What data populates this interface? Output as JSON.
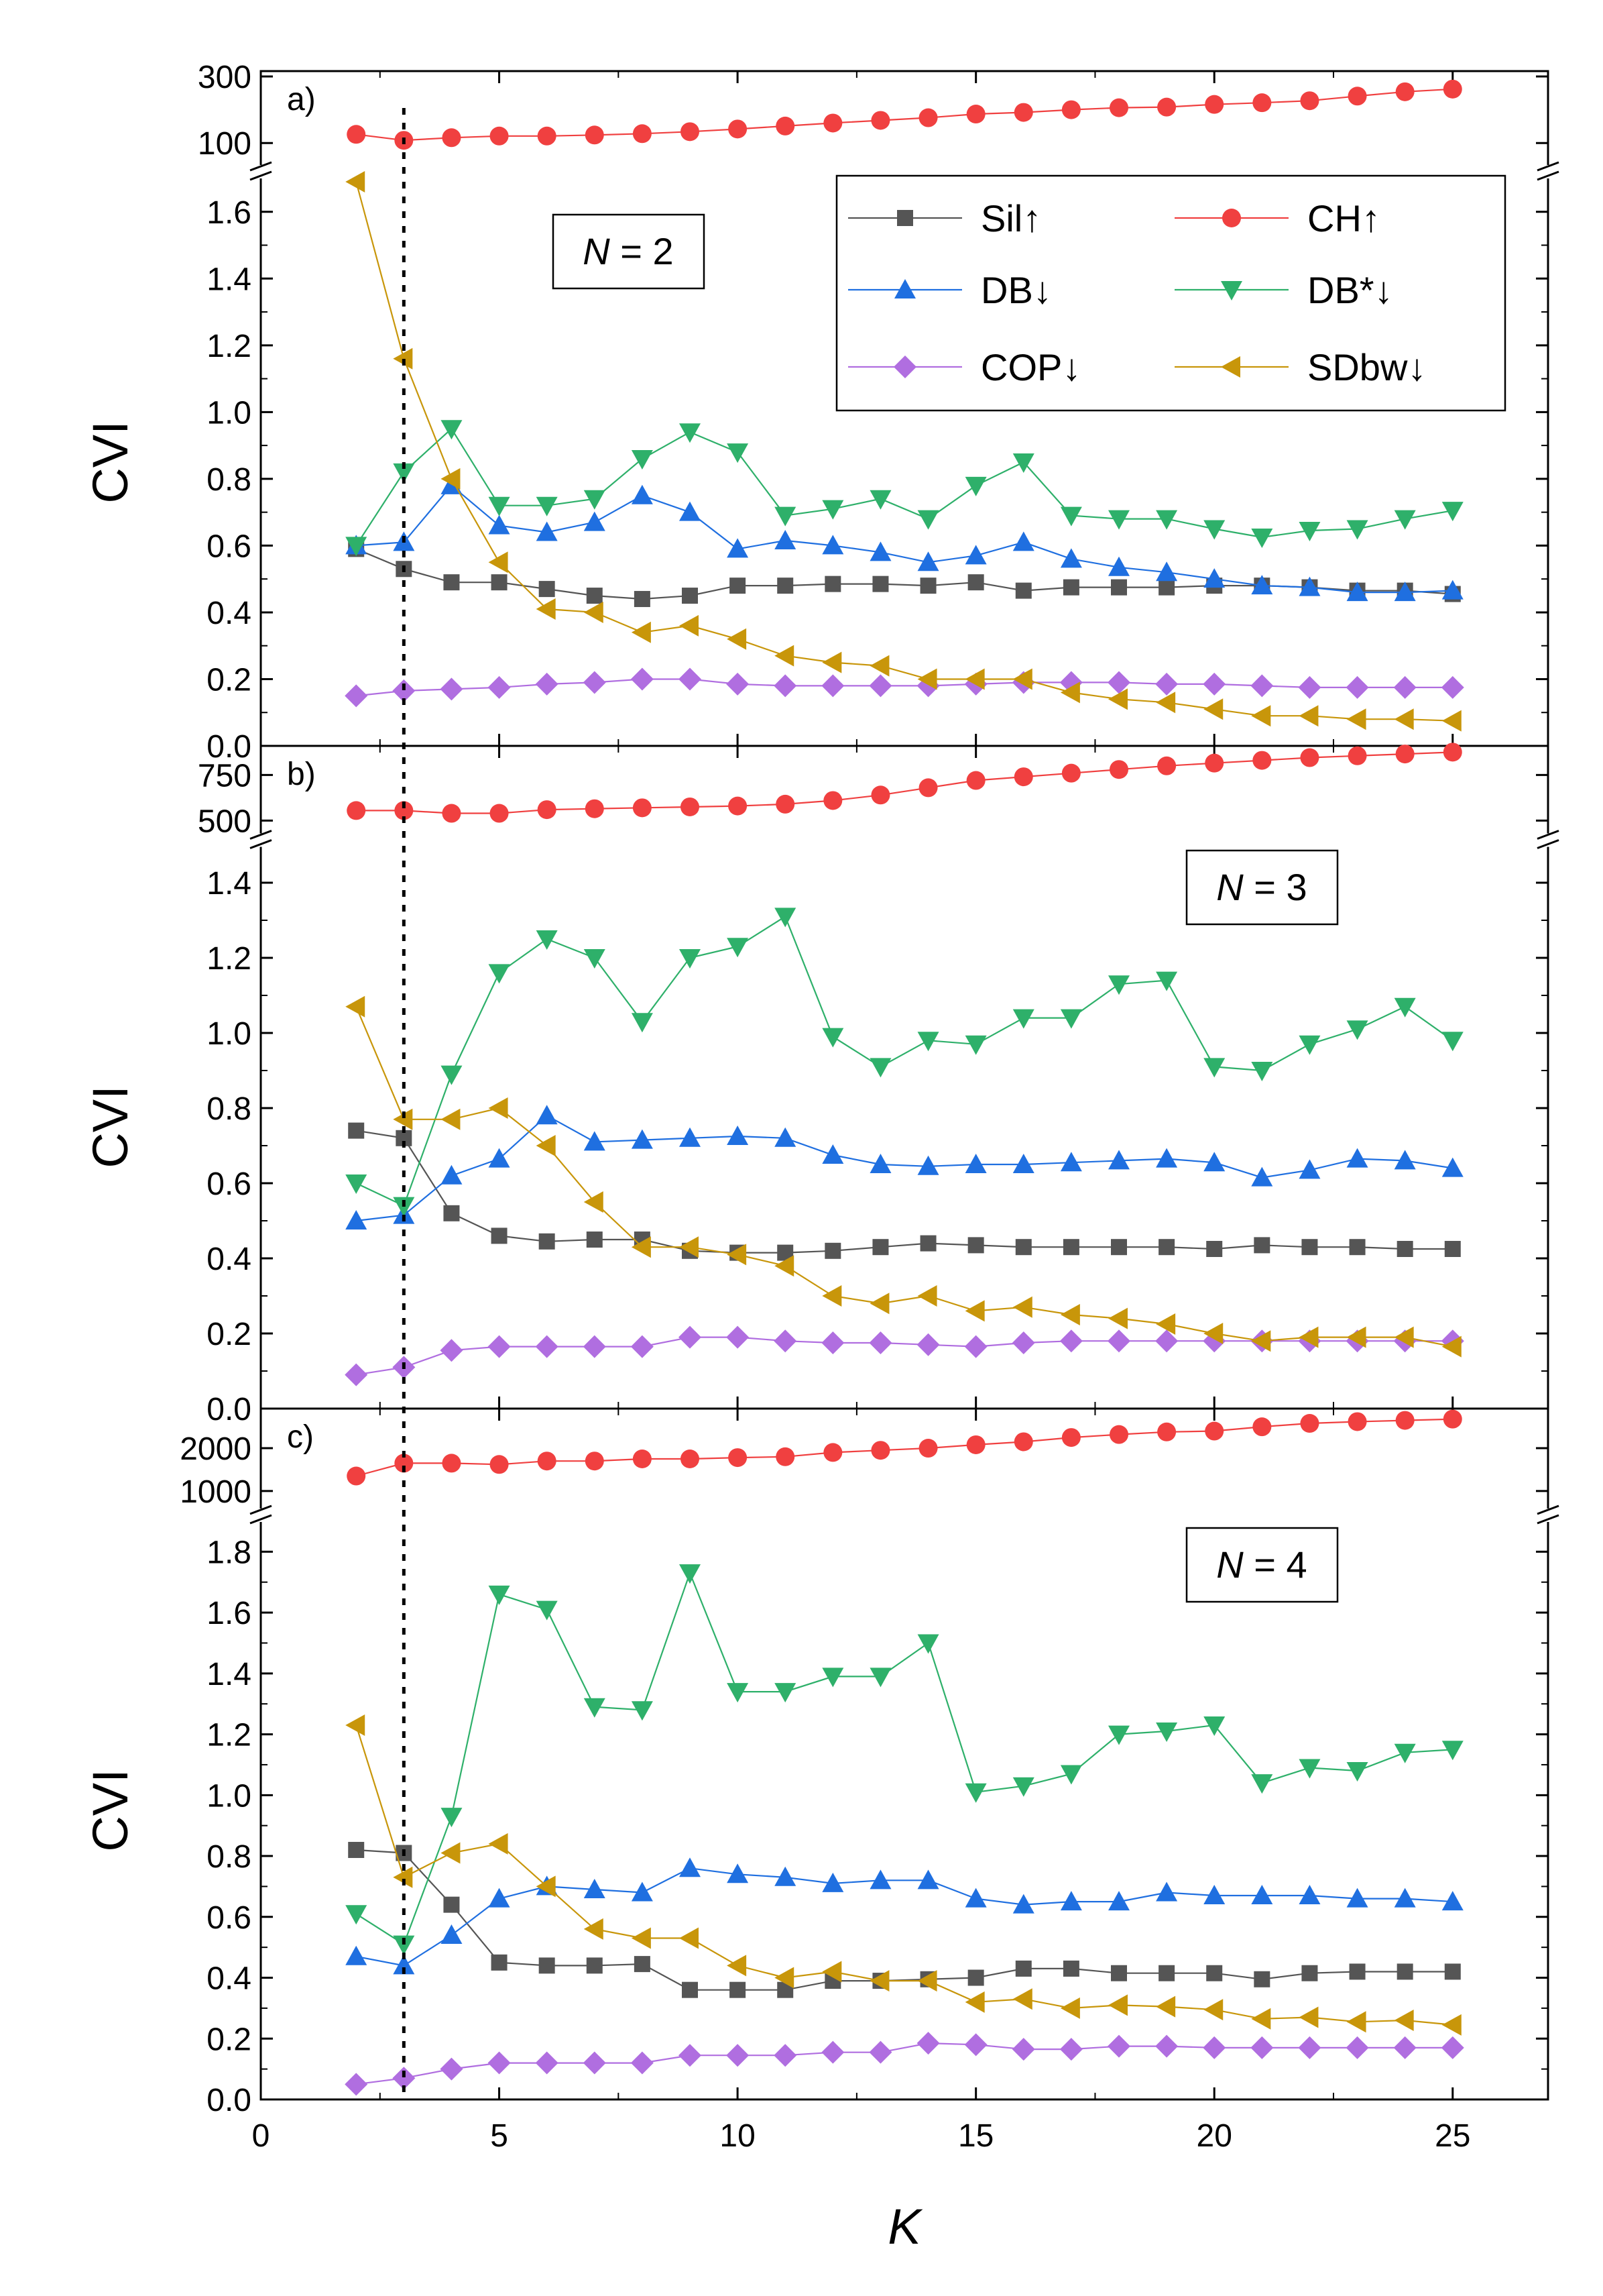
{
  "chart_data": {
    "type": "line",
    "xlabel": "K",
    "ylabel": "CVI",
    "xlim": [
      0,
      27
    ],
    "xticks": [
      0,
      5,
      10,
      15,
      20,
      25
    ],
    "x": [
      2,
      3,
      4,
      5,
      6,
      7,
      8,
      9,
      10,
      11,
      12,
      13,
      14,
      15,
      16,
      17,
      18,
      19,
      20,
      21,
      22,
      23,
      24,
      25
    ],
    "optimal_k_marker": 3,
    "legend": [
      {
        "key": "Sil",
        "label": "Sil↑",
        "color": "#555555",
        "marker": "square"
      },
      {
        "key": "CH",
        "label": "CH↑",
        "color": "#f04040",
        "marker": "circle"
      },
      {
        "key": "DB",
        "label": "DB↓",
        "color": "#1f6fe0",
        "marker": "triangle-up"
      },
      {
        "key": "DBs",
        "label": "DB*↓",
        "color": "#2eb06a",
        "marker": "triangle-down"
      },
      {
        "key": "COP",
        "label": "COP↓",
        "color": "#b06ee0",
        "marker": "diamond"
      },
      {
        "key": "SDbw",
        "label": "SDbw↓",
        "color": "#c8960a",
        "marker": "triangle-left"
      }
    ],
    "panels": [
      {
        "label": "a)",
        "n_text_italic": "N",
        "n_text_rest": " = 2",
        "ch_ylim": [
          50,
          300
        ],
        "ch_ticks": [
          "100",
          "300"
        ],
        "ch_tick_values": [
          100,
          300
        ],
        "main_ylim": [
          0,
          1.7
        ],
        "main_ticks": [
          "0.0",
          "0.2",
          "0.4",
          "0.6",
          "0.8",
          "1.0",
          "1.2",
          "1.4",
          "1.6"
        ],
        "main_tick_values": [
          0,
          0.2,
          0.4,
          0.6,
          0.8,
          1.0,
          1.2,
          1.4,
          1.6
        ],
        "CH": [
          126,
          108,
          116,
          121,
          121,
          124,
          128,
          134,
          142,
          151,
          160,
          168,
          176,
          187,
          192,
          200,
          206,
          208,
          216,
          221,
          227,
          241,
          254,
          262
        ],
        "Sil": [
          0.59,
          0.53,
          0.49,
          0.49,
          0.47,
          0.45,
          0.44,
          0.45,
          0.48,
          0.48,
          0.485,
          0.485,
          0.48,
          0.49,
          0.465,
          0.475,
          0.475,
          0.475,
          0.48,
          0.48,
          0.475,
          0.465,
          0.465,
          0.455
        ],
        "DB": [
          0.6,
          0.61,
          0.78,
          0.66,
          0.64,
          0.67,
          0.75,
          0.7,
          0.59,
          0.615,
          0.6,
          0.58,
          0.55,
          0.57,
          0.61,
          0.56,
          0.535,
          0.52,
          0.5,
          0.48,
          0.475,
          0.46,
          0.46,
          0.465
        ],
        "DBs": [
          0.6,
          0.82,
          0.95,
          0.72,
          0.72,
          0.74,
          0.86,
          0.94,
          0.88,
          0.69,
          0.71,
          0.74,
          0.68,
          0.78,
          0.85,
          0.69,
          0.68,
          0.68,
          0.65,
          0.625,
          0.645,
          0.65,
          0.68,
          0.705
        ],
        "COP": [
          0.15,
          0.165,
          0.17,
          0.175,
          0.185,
          0.19,
          0.2,
          0.2,
          0.185,
          0.18,
          0.18,
          0.18,
          0.18,
          0.185,
          0.19,
          0.19,
          0.19,
          0.185,
          0.185,
          0.18,
          0.175,
          0.175,
          0.175,
          0.175
        ],
        "SDbw": [
          1.69,
          1.16,
          0.8,
          0.55,
          0.41,
          0.4,
          0.34,
          0.36,
          0.32,
          0.27,
          0.25,
          0.24,
          0.2,
          0.2,
          0.2,
          0.16,
          0.14,
          0.13,
          0.11,
          0.09,
          0.09,
          0.08,
          0.08,
          0.075
        ]
      },
      {
        "label": "b)",
        "n_text_italic": "N",
        "n_text_rest": " = 3",
        "ch_ylim": [
          450,
          880
        ],
        "ch_ticks": [
          "500",
          "750"
        ],
        "ch_tick_values": [
          500,
          750
        ],
        "main_ylim": [
          0,
          1.5
        ],
        "main_ticks": [
          "0.0",
          "0.2",
          "0.4",
          "0.6",
          "0.8",
          "1.0",
          "1.2",
          "1.4"
        ],
        "main_tick_values": [
          0,
          0.2,
          0.4,
          0.6,
          0.8,
          1.0,
          1.2,
          1.4
        ],
        "CH": [
          555,
          555,
          540,
          540,
          560,
          565,
          570,
          575,
          580,
          590,
          610,
          640,
          680,
          720,
          740,
          760,
          780,
          800,
          815,
          830,
          845,
          855,
          865,
          875
        ],
        "Sil": [
          0.74,
          0.72,
          0.52,
          0.46,
          0.445,
          0.45,
          0.45,
          0.42,
          0.415,
          0.415,
          0.42,
          0.43,
          0.44,
          0.435,
          0.43,
          0.43,
          0.43,
          0.43,
          0.425,
          0.435,
          0.43,
          0.43,
          0.425,
          0.425
        ],
        "DB": [
          0.5,
          0.515,
          0.62,
          0.665,
          0.78,
          0.71,
          0.715,
          0.72,
          0.725,
          0.72,
          0.675,
          0.65,
          0.645,
          0.65,
          0.65,
          0.655,
          0.66,
          0.665,
          0.655,
          0.615,
          0.635,
          0.665,
          0.66,
          0.64
        ],
        "DBs": [
          0.6,
          0.54,
          0.89,
          1.16,
          1.25,
          1.2,
          1.03,
          1.2,
          1.23,
          1.31,
          0.99,
          0.91,
          0.98,
          0.97,
          1.04,
          1.04,
          1.13,
          1.14,
          0.91,
          0.9,
          0.97,
          1.01,
          1.07,
          0.98
        ],
        "COP": [
          0.09,
          0.11,
          0.155,
          0.165,
          0.165,
          0.165,
          0.165,
          0.19,
          0.19,
          0.18,
          0.175,
          0.175,
          0.17,
          0.165,
          0.175,
          0.18,
          0.18,
          0.18,
          0.18,
          0.18,
          0.18,
          0.18,
          0.18,
          0.18
        ],
        "SDbw": [
          1.07,
          0.77,
          0.77,
          0.8,
          0.7,
          0.55,
          0.43,
          0.43,
          0.41,
          0.38,
          0.3,
          0.28,
          0.3,
          0.26,
          0.27,
          0.25,
          0.24,
          0.225,
          0.2,
          0.18,
          0.19,
          0.19,
          0.19,
          0.165
        ]
      },
      {
        "label": "c)",
        "n_text_italic": "N",
        "n_text_rest": " = 4",
        "ch_ylim": [
          700,
          2800
        ],
        "ch_ticks": [
          "1000",
          "2000"
        ],
        "ch_tick_values": [
          1000,
          2000
        ],
        "main_ylim": [
          0,
          1.9
        ],
        "main_ticks": [
          "0.0",
          "0.2",
          "0.4",
          "0.6",
          "0.8",
          "1.0",
          "1.2",
          "1.4",
          "1.6",
          "1.8"
        ],
        "main_tick_values": [
          0,
          0.2,
          0.4,
          0.6,
          0.8,
          1.0,
          1.2,
          1.4,
          1.6,
          1.8
        ],
        "CH": [
          1350,
          1650,
          1650,
          1620,
          1700,
          1700,
          1750,
          1750,
          1780,
          1800,
          1900,
          1950,
          2000,
          2080,
          2150,
          2250,
          2320,
          2380,
          2400,
          2500,
          2580,
          2620,
          2650,
          2680
        ],
        "Sil": [
          0.82,
          0.81,
          0.64,
          0.45,
          0.44,
          0.44,
          0.445,
          0.36,
          0.36,
          0.36,
          0.39,
          0.39,
          0.395,
          0.4,
          0.43,
          0.43,
          0.415,
          0.415,
          0.415,
          0.395,
          0.415,
          0.42,
          0.42,
          0.42
        ],
        "DB": [
          0.47,
          0.44,
          0.54,
          0.66,
          0.7,
          0.69,
          0.68,
          0.76,
          0.74,
          0.73,
          0.71,
          0.72,
          0.72,
          0.66,
          0.64,
          0.65,
          0.65,
          0.68,
          0.67,
          0.67,
          0.67,
          0.66,
          0.66,
          0.65
        ],
        "DBs": [
          0.61,
          0.51,
          0.93,
          1.66,
          1.61,
          1.29,
          1.28,
          1.73,
          1.34,
          1.34,
          1.39,
          1.39,
          1.5,
          1.01,
          1.03,
          1.07,
          1.2,
          1.21,
          1.23,
          1.04,
          1.09,
          1.08,
          1.14,
          1.15
        ],
        "COP": [
          0.05,
          0.07,
          0.1,
          0.12,
          0.12,
          0.12,
          0.12,
          0.145,
          0.145,
          0.145,
          0.155,
          0.155,
          0.185,
          0.18,
          0.165,
          0.165,
          0.175,
          0.175,
          0.17,
          0.17,
          0.17,
          0.17,
          0.17,
          0.17
        ],
        "SDbw": [
          1.23,
          0.73,
          0.81,
          0.84,
          0.7,
          0.56,
          0.53,
          0.53,
          0.44,
          0.4,
          0.42,
          0.39,
          0.39,
          0.32,
          0.33,
          0.3,
          0.31,
          0.305,
          0.295,
          0.265,
          0.27,
          0.255,
          0.26,
          0.245
        ]
      }
    ]
  }
}
